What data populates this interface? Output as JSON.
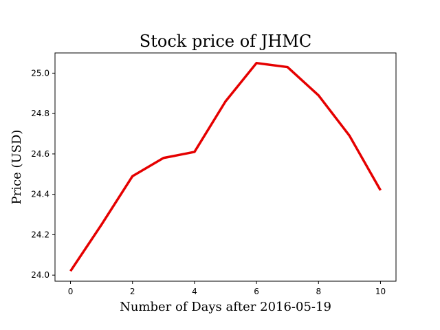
{
  "chart_data": {
    "type": "line",
    "title": "Stock price of JHMC",
    "xlabel": "Number of Days after 2016-05-19",
    "ylabel": "Price (USD)",
    "x": [
      0,
      1,
      2,
      3,
      4,
      5,
      6,
      7,
      8,
      9,
      10
    ],
    "series": [
      {
        "values": [
          24.02,
          24.25,
          24.49,
          24.58,
          24.61,
          24.86,
          25.05,
          25.03,
          24.89,
          24.69,
          24.42
        ],
        "color": "#e50000"
      }
    ],
    "xlim": [
      -0.5,
      10.5
    ],
    "ylim": [
      23.97,
      25.1
    ],
    "xticks": [
      0,
      2,
      4,
      6,
      8,
      10
    ],
    "xtick_labels": [
      "0",
      "2",
      "4",
      "6",
      "8",
      "10"
    ],
    "yticks": [
      24.0,
      24.2,
      24.4,
      24.6,
      24.8,
      25.0
    ],
    "ytick_labels": [
      "24.0",
      "24.2",
      "24.4",
      "24.6",
      "24.8",
      "25.0"
    ],
    "grid": false,
    "legend": "none"
  }
}
